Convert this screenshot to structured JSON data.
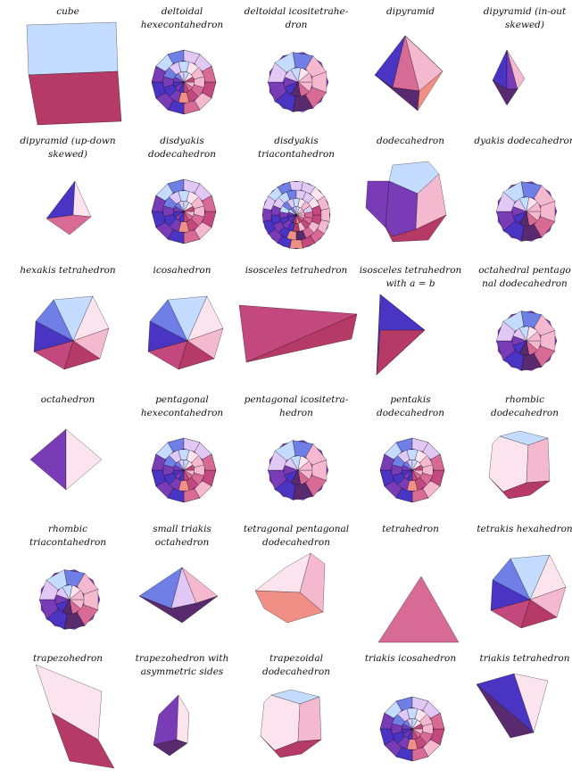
{
  "palette": {
    "light_blue": "#c4dcff",
    "blue": "#6f7fe6",
    "deep_blue": "#4a34c4",
    "violet": "#7a3bb6",
    "magenta": "#c2487e",
    "crimson": "#b63a66",
    "pink": "#f4b9cf",
    "salmon": "#f08f86",
    "lavender": "#e2c8f4",
    "white_pink": "#fbe4ee",
    "dark_purple": "#5a2a6e",
    "rose": "#d86a96"
  },
  "solids": [
    {
      "label": "cube",
      "shape": "cube"
    },
    {
      "label": "deltoidal\nhexecontahedron",
      "shape": "ball"
    },
    {
      "label": "deltoidal icositetrahe-\ndron",
      "shape": "ball-coarse"
    },
    {
      "label": "dipyramid",
      "shape": "dipyramid"
    },
    {
      "label": "dipyramid (in-out\nskewed)",
      "shape": "dipyramid-small"
    },
    {
      "label": "dipyramid (up-down\nskewed)",
      "shape": "tetra-small"
    },
    {
      "label": "disdyakis\ndodecahedron",
      "shape": "ball"
    },
    {
      "label": "disdyakis\ntriacontahedron",
      "shape": "ball-fine"
    },
    {
      "label": "dodecahedron",
      "shape": "dodeca"
    },
    {
      "label": "dyakis dodecahedron",
      "shape": "ball-coarse"
    },
    {
      "label": "hexakis tetrahedron",
      "shape": "hexagon-solid"
    },
    {
      "label": "icosahedron",
      "shape": "hexagon-solid"
    },
    {
      "label": "isosceles tetrahedron",
      "shape": "wedge"
    },
    {
      "label": "isosceles tetrahedron\nwith a = b",
      "shape": "sliver"
    },
    {
      "label": "octahedral pentago\nnal dodecahedron",
      "shape": "ball-coarse"
    },
    {
      "label": "octahedron",
      "shape": "octa"
    },
    {
      "label": "pentagonal\nhexecontahedron",
      "shape": "ball"
    },
    {
      "label": "pentagonal icositetra-\nhedron",
      "shape": "ball-coarse"
    },
    {
      "label": "pentakis\ndodecahedron",
      "shape": "ball"
    },
    {
      "label": "rhombic\ndodecahedron",
      "shape": "rhombic"
    },
    {
      "label": "rhombic\ntriacontahedron",
      "shape": "ball-coarse"
    },
    {
      "label": "small triakis\noctahedron",
      "shape": "diamond-wide"
    },
    {
      "label": "tetragonal pentagonal\ndodecahedron",
      "shape": "tetra-pent"
    },
    {
      "label": "tetrahedron",
      "shape": "triangle"
    },
    {
      "label": "tetrakis hexahedron",
      "shape": "hexagon-solid"
    },
    {
      "label": "trapezohedron",
      "shape": "trapezo"
    },
    {
      "label": "trapezohedron with\nasymmetric sides",
      "shape": "hexa-small"
    },
    {
      "label": "trapezoidal\ndodecahedron",
      "shape": "rhombic"
    },
    {
      "label": "triakis icosahedron",
      "shape": "ball"
    },
    {
      "label": "triakis tetrahedron",
      "shape": "inverted"
    }
  ]
}
